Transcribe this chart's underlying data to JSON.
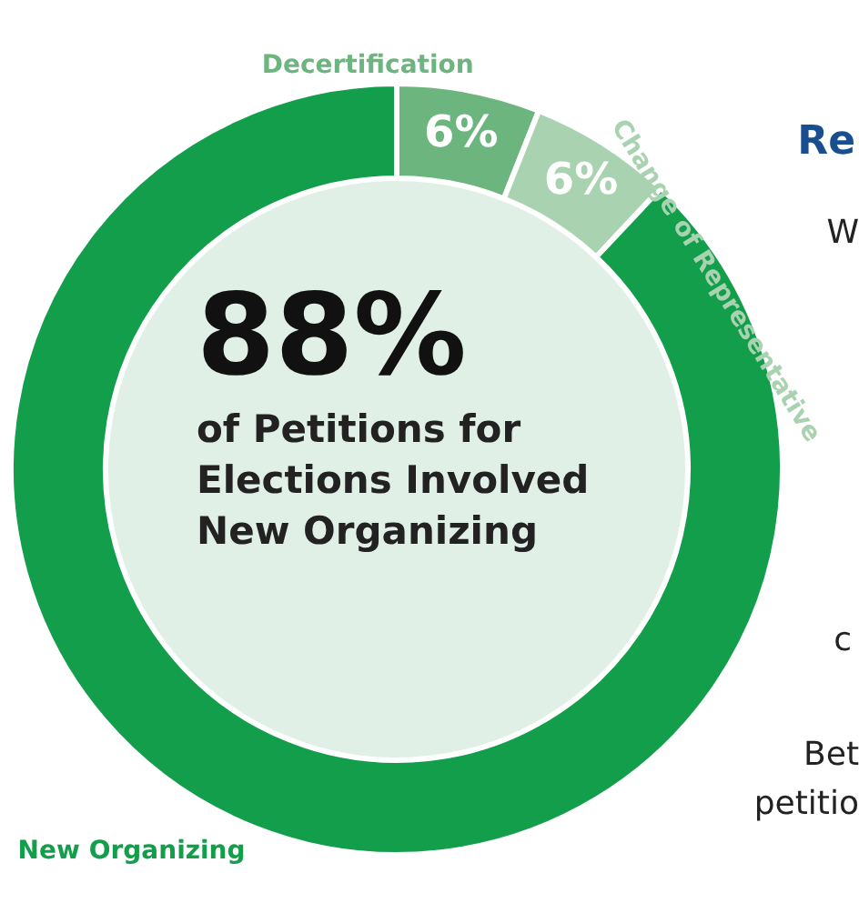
{
  "chart_data": {
    "type": "donut",
    "title": "88%",
    "subtitle": "of Petitions for Elections Involved New Organizing",
    "categories": [
      "Decertification",
      "Change of Representative",
      "New Organizing"
    ],
    "values": [
      6,
      6,
      88
    ],
    "colors": [
      "#6db57f",
      "#a9d3b0",
      "#129e4b"
    ],
    "value_labels": [
      "6%",
      "6%",
      null
    ],
    "annotations": [
      "Re",
      "W",
      "c",
      "Bet",
      "petitio"
    ]
  }
}
